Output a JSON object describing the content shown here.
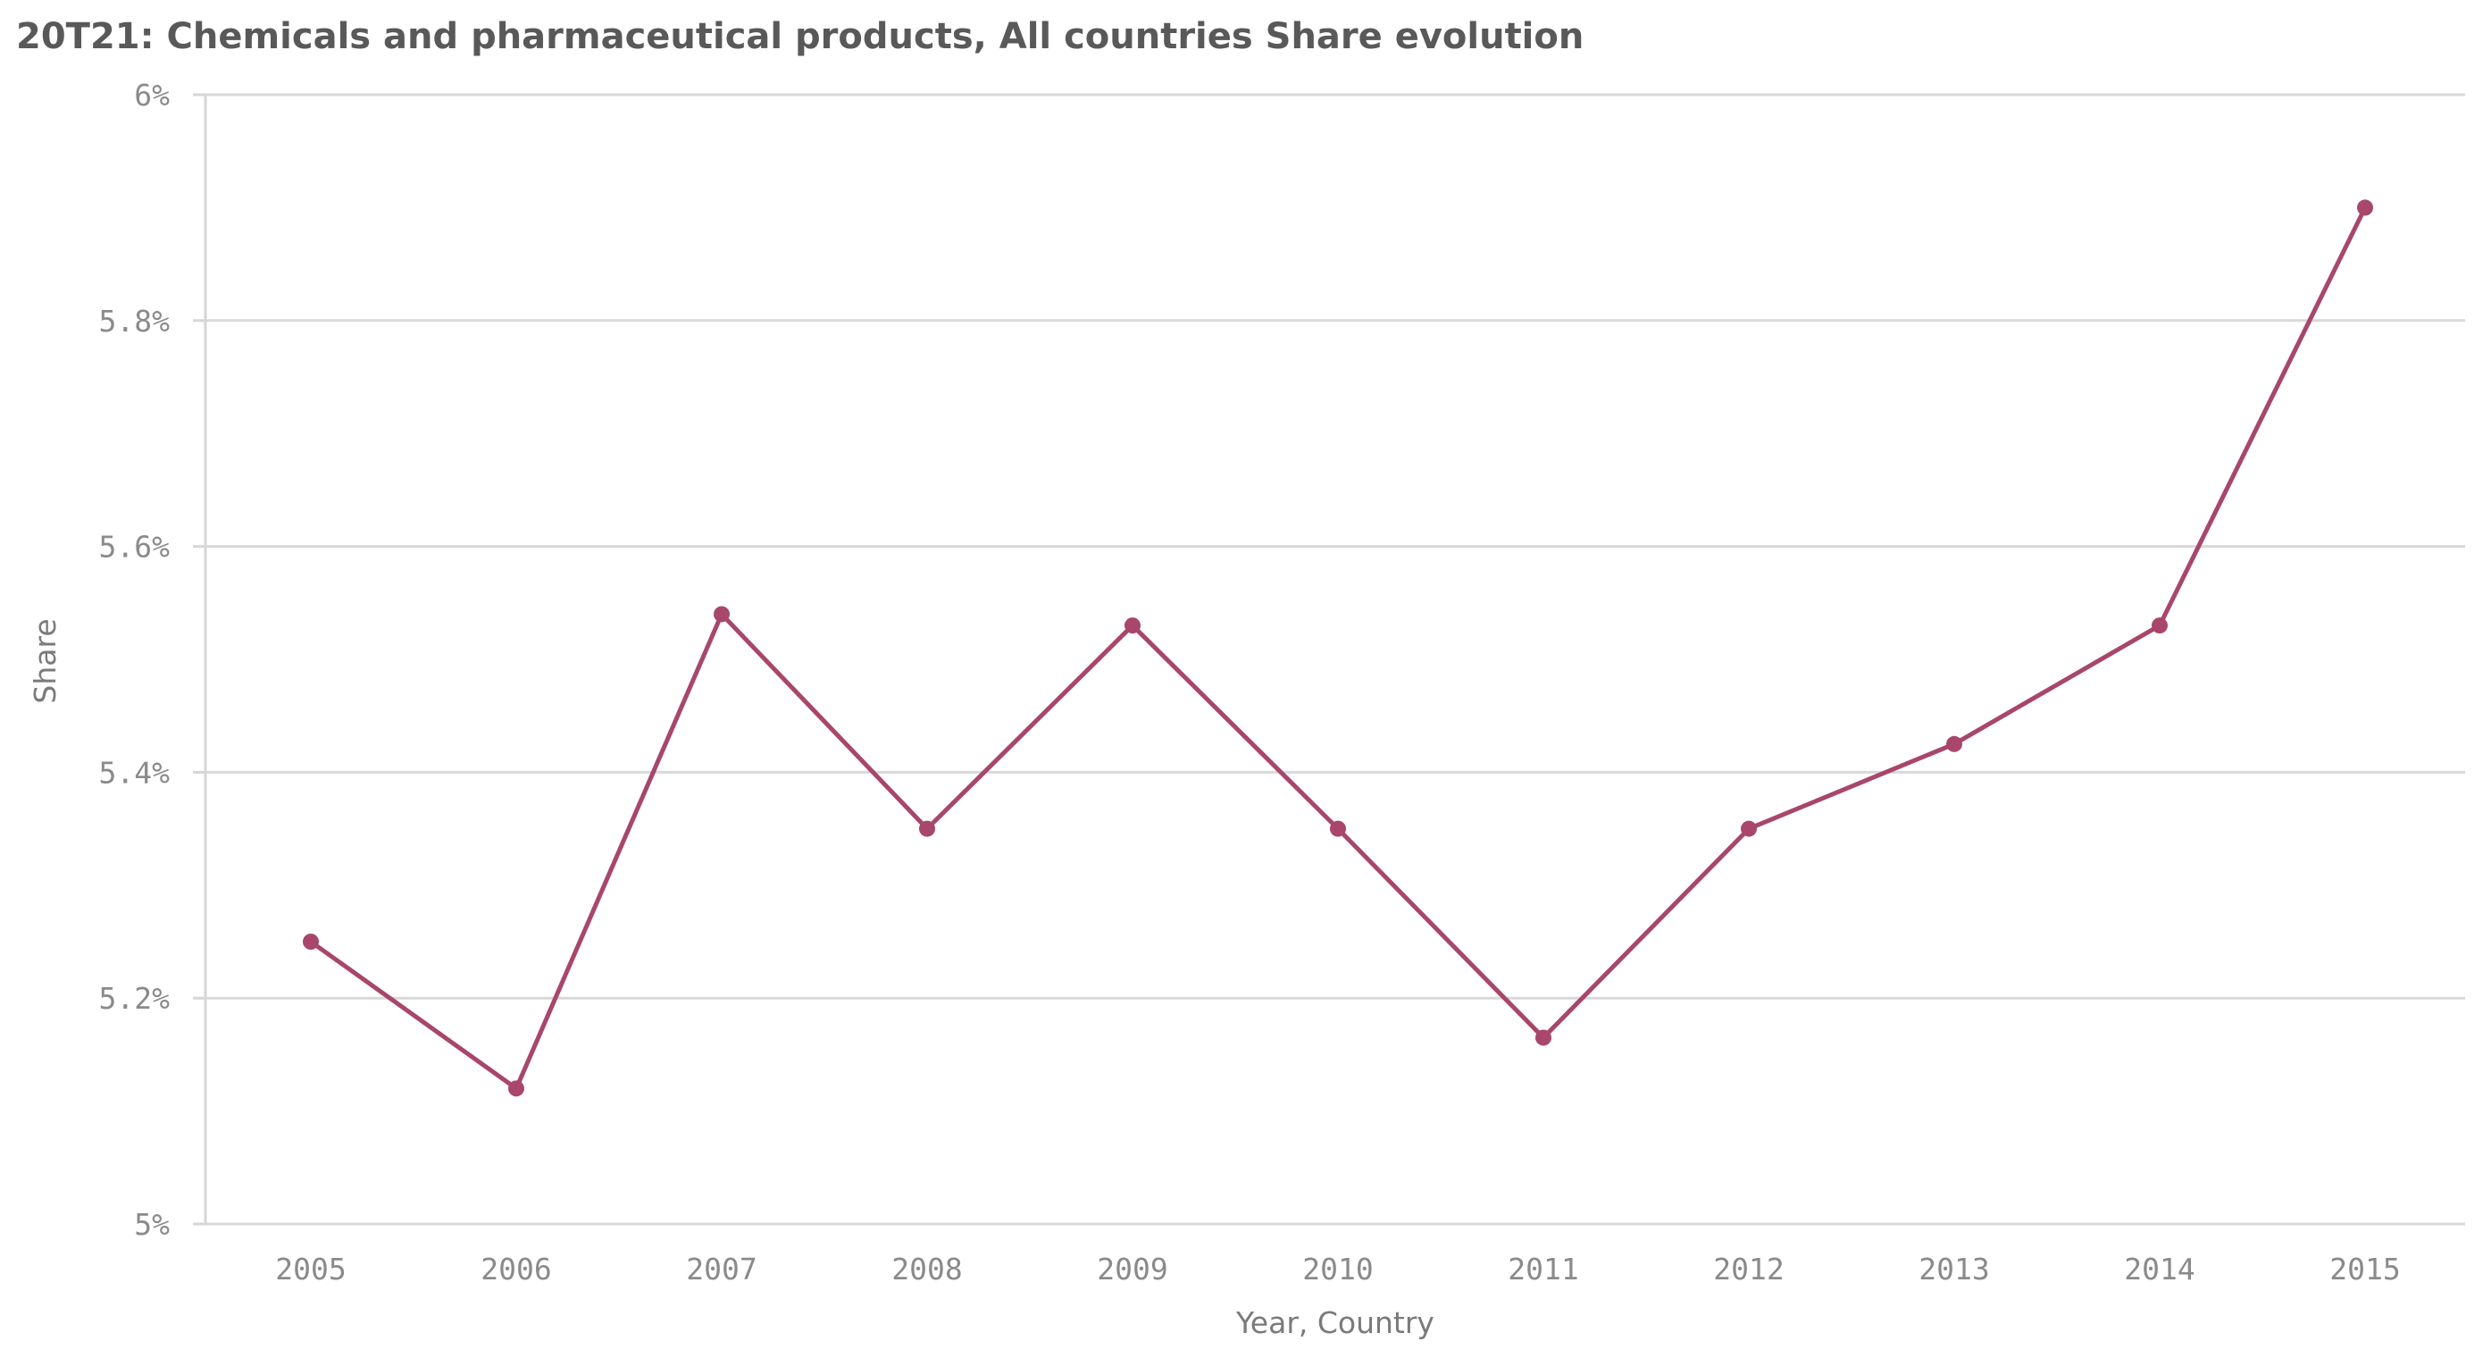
{
  "chart_data": {
    "type": "line",
    "title": "20T21: Chemicals and pharmaceutical products, All countries Share evolution",
    "xlabel": "Year, Country",
    "ylabel": "Share",
    "categories": [
      "2005",
      "2006",
      "2007",
      "2008",
      "2009",
      "2010",
      "2011",
      "2012",
      "2013",
      "2014",
      "2015"
    ],
    "series": [
      {
        "name": "Share",
        "values": [
          5.25,
          5.12,
          5.54,
          5.35,
          5.53,
          5.35,
          5.165,
          5.35,
          5.425,
          5.53,
          5.9
        ]
      }
    ],
    "ylim": [
      5.0,
      6.0
    ],
    "yticks": [
      5.0,
      5.2,
      5.4,
      5.6,
      5.8,
      6.0
    ],
    "ytick_labels": [
      "5%",
      "5.2%",
      "5.4%",
      "5.6%",
      "5.8%",
      "6%"
    ],
    "grid": true,
    "line_color": "#a8466b"
  }
}
